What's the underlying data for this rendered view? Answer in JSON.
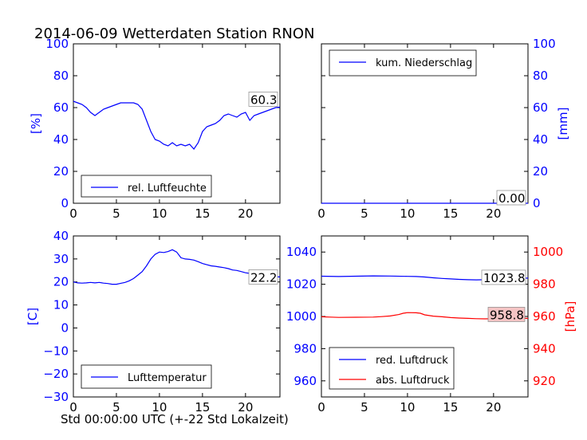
{
  "title": "2014-06-09 Wetterdaten Station RNON",
  "xlabel": "Std 00:00:00 UTC (+-22 Std Lokalzeit)",
  "colors": {
    "blue": "#0000ff",
    "red": "#ff0000"
  },
  "chart_data": [
    {
      "type": "line",
      "ylabel": "[%]",
      "ylim": [
        0,
        100
      ],
      "yticks": [
        "0",
        "20",
        "40",
        "60",
        "80",
        "100"
      ],
      "xlim": [
        0,
        24
      ],
      "xticks": [
        "0",
        "5",
        "10",
        "15",
        "20"
      ],
      "legend": {
        "placement": "lower-left",
        "entries": [
          "rel. Luftfeuchte"
        ]
      },
      "annotation": "60.3",
      "series": [
        {
          "name": "rel. Luftfeuchte",
          "color": "#0000ff",
          "x": [
            0,
            0.5,
            1,
            1.5,
            2,
            2.5,
            3,
            3.5,
            4,
            4.5,
            5,
            5.5,
            6,
            6.5,
            7,
            7.5,
            8,
            8.5,
            9,
            9.5,
            10,
            10.5,
            11,
            11.5,
            12,
            12.5,
            13,
            13.5,
            14,
            14.5,
            15,
            15.5,
            16,
            16.5,
            17,
            17.5,
            18,
            18.5,
            19,
            19.5,
            20,
            20.5,
            21,
            21.5,
            22,
            22.5,
            23,
            23.5,
            24
          ],
          "values": [
            64,
            63,
            62,
            60,
            57,
            55,
            57,
            59,
            60,
            61,
            62,
            63,
            63,
            63,
            63,
            62,
            59,
            52,
            45,
            40,
            39,
            37,
            36,
            38,
            36,
            37,
            36,
            37,
            34,
            38,
            45,
            48,
            49,
            50,
            52,
            55,
            56,
            55,
            54,
            56,
            57,
            52,
            55,
            56,
            57,
            58,
            59,
            60,
            60.3
          ]
        }
      ]
    },
    {
      "type": "line",
      "ylabel": "[mm]",
      "ylim": [
        0,
        100
      ],
      "yticks": [
        "0",
        "20",
        "40",
        "60",
        "80",
        "100"
      ],
      "xlim": [
        0,
        24
      ],
      "xticks": [
        "0",
        "5",
        "10",
        "15",
        "20"
      ],
      "legend": {
        "placement": "upper-left",
        "entries": [
          "kum. Niederschlag"
        ]
      },
      "annotation": "0.00",
      "series": [
        {
          "name": "kum. Niederschlag",
          "color": "#0000ff",
          "x": [
            0,
            24
          ],
          "values": [
            0,
            0
          ]
        }
      ]
    },
    {
      "type": "line",
      "ylabel": "[C]",
      "ylim": [
        -30,
        40
      ],
      "yticks": [
        "−30",
        "−20",
        "−10",
        "0",
        "10",
        "20",
        "30",
        "40"
      ],
      "xlim": [
        0,
        24
      ],
      "xticks": [
        "0",
        "5",
        "10",
        "15",
        "20"
      ],
      "legend": {
        "placement": "lower-left",
        "entries": [
          "Lufttemperatur"
        ]
      },
      "annotation": "22.2",
      "series": [
        {
          "name": "Lufttemperatur",
          "color": "#0000ff",
          "x": [
            0,
            0.5,
            1,
            1.5,
            2,
            2.5,
            3,
            3.5,
            4,
            4.5,
            5,
            5.5,
            6,
            6.5,
            7,
            7.5,
            8,
            8.5,
            9,
            9.5,
            10,
            10.5,
            11,
            11.5,
            12,
            12.5,
            13,
            13.5,
            14,
            14.5,
            15,
            15.5,
            16,
            16.5,
            17,
            17.5,
            18,
            18.5,
            19,
            19.5,
            20,
            20.5,
            21,
            21.5,
            22,
            22.5,
            23,
            23.5,
            24
          ],
          "values": [
            20,
            19.6,
            19.5,
            19.6,
            19.8,
            19.6,
            19.8,
            19.5,
            19.3,
            19,
            19,
            19.4,
            19.8,
            20.5,
            21.5,
            23,
            24.5,
            27,
            30,
            32,
            33,
            32.8,
            33.2,
            34,
            33,
            30.5,
            30,
            29.8,
            29.5,
            28.8,
            28,
            27.5,
            27,
            26.8,
            26.5,
            26.2,
            25.8,
            25.2,
            25,
            24.5,
            24,
            23.7,
            23.4,
            23,
            22.8,
            22.6,
            22.4,
            22.2,
            22.2
          ]
        }
      ]
    },
    {
      "type": "line",
      "ylabel": "[hPa]",
      "ylim_left": [
        950,
        1050
      ],
      "yticks_left": [
        "960",
        "980",
        "1000",
        "1020",
        "1040"
      ],
      "ylim_right": [
        910,
        1010
      ],
      "yticks_right": [
        "920",
        "940",
        "960",
        "980",
        "1000"
      ],
      "xlim": [
        0,
        24
      ],
      "xticks": [
        "0",
        "5",
        "10",
        "15",
        "20"
      ],
      "legend": {
        "placement": "lower-left",
        "entries": [
          "red. Luftdruck",
          "abs. Luftdruck"
        ]
      },
      "annotations": [
        "1023.8",
        "958.8"
      ],
      "series": [
        {
          "name": "red. Luftdruck",
          "axis": "left",
          "color": "#0000ff",
          "x": [
            0,
            2,
            4,
            6,
            8,
            10,
            11,
            12,
            13,
            14,
            15,
            16,
            17,
            18,
            19,
            20,
            21,
            22,
            23,
            24
          ],
          "values": [
            1025,
            1024.8,
            1025,
            1025.2,
            1025.1,
            1024.9,
            1024.8,
            1024.5,
            1024,
            1023.6,
            1023.3,
            1023,
            1022.8,
            1022.7,
            1022.8,
            1023,
            1023.2,
            1023.5,
            1023.7,
            1023.8
          ]
        },
        {
          "name": "abs. Luftdruck",
          "axis": "right",
          "color": "#ff0000",
          "x": [
            0,
            1,
            2,
            4,
            6,
            7,
            8,
            9,
            9.5,
            10,
            11,
            11.5,
            12,
            13,
            14,
            15,
            16,
            17,
            18,
            19,
            20,
            21,
            22,
            23,
            24
          ],
          "values": [
            959.8,
            959.6,
            959.4,
            959.5,
            959.6,
            959.9,
            960.3,
            961.2,
            962,
            962.4,
            962.3,
            962,
            961,
            960.2,
            959.8,
            959.3,
            959,
            958.8,
            958.6,
            958.5,
            958.6,
            958.7,
            958.9,
            958.8,
            958.8
          ]
        }
      ]
    }
  ]
}
